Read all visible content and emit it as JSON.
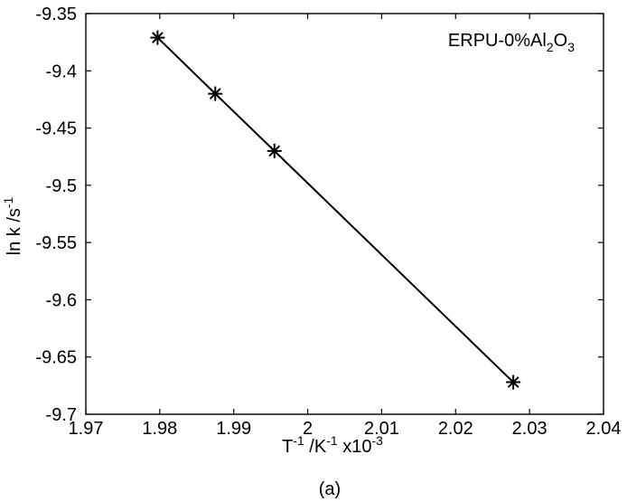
{
  "chart_data": {
    "type": "line",
    "title": "",
    "legend": {
      "text": "ERPU-0%Al2O3",
      "placement": "top-right"
    },
    "xlabel": "T-1 /K-1 x10-3",
    "ylabel": "ln k /s-1",
    "caption": "(a)",
    "xlim": [
      1.97,
      2.04
    ],
    "ylim": [
      -9.7,
      -9.35
    ],
    "x_ticks": [
      1.97,
      1.98,
      1.99,
      2.0,
      2.01,
      2.02,
      2.03,
      2.04
    ],
    "x_tick_labels": [
      "1.97",
      "1.98",
      "1.99",
      "2",
      "2.01",
      "2.02",
      "2.03",
      "2.04"
    ],
    "y_ticks": [
      -9.35,
      -9.4,
      -9.45,
      -9.5,
      -9.55,
      -9.6,
      -9.65,
      -9.7
    ],
    "y_tick_labels": [
      "-9.35",
      "-9.4",
      "-9.45",
      "-9.5",
      "-9.55",
      "-9.6",
      "-9.65",
      "-9.7"
    ],
    "grid": false,
    "series": [
      {
        "marker": "asterisk",
        "color": "#000000",
        "x": [
          1.9797,
          1.9875,
          1.9955,
          2.0278
        ],
        "y": [
          -9.371,
          -9.42,
          -9.47,
          -9.672
        ]
      }
    ]
  }
}
